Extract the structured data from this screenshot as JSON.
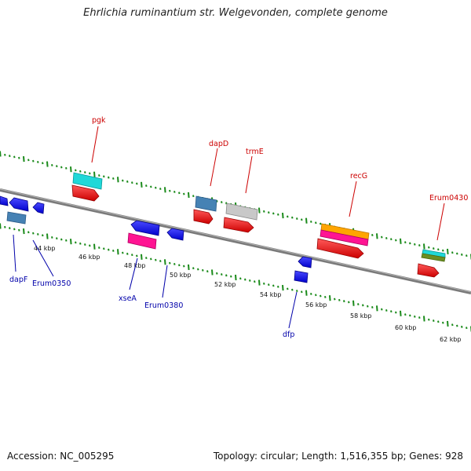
{
  "title": "Ehrlichia ruminantium str. Welgevonden, complete genome",
  "footer": {
    "accession": "Accession: NC_005295",
    "summary": "Topology: circular; Length: 1,516,355 bp; Genes: 928"
  },
  "colors": {
    "backbone": "#808080",
    "tick": "#1a8a1a",
    "label_top": "#cc0000",
    "label_bottom": "#0000aa"
  },
  "kbp_labels": [
    "44 kbp",
    "46 kbp",
    "48 kbp",
    "50 kbp",
    "52 kbp",
    "54 kbp",
    "56 kbp",
    "58 kbp",
    "60 kbp",
    "62 kbp"
  ],
  "gene_labels": {
    "top": [
      "pgk",
      "dapD",
      "trmE",
      "recG",
      "Erum0430"
    ],
    "bottom": [
      "dapF",
      "Erum0350",
      "xseA",
      "Erum0380",
      "dfp"
    ]
  }
}
